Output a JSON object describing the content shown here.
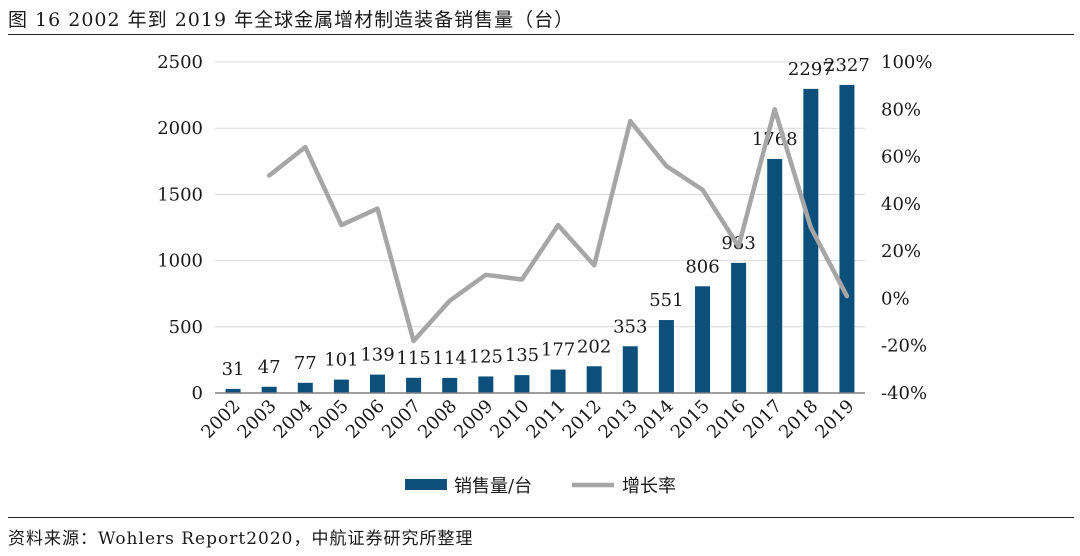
{
  "title": "图 16 2002 年到 2019 年全球金属增材制造装备销售量（台）",
  "source": "资料来源：Wohlers Report2020，中航证券研究所整理",
  "colors": {
    "bar": "#0b4f7a",
    "line": "#a6a6a6",
    "axis": "#7f7f7f",
    "grid": "#d9d9d9"
  },
  "chart_data": {
    "type": "bar",
    "categories": [
      "2002",
      "2003",
      "2004",
      "2005",
      "2006",
      "2007",
      "2008",
      "2009",
      "2010",
      "2011",
      "2012",
      "2013",
      "2014",
      "2015",
      "2016",
      "2017",
      "2018",
      "2019"
    ],
    "series": [
      {
        "name": "销售量/台",
        "type": "bar",
        "axis": "left",
        "values": [
          31,
          47,
          77,
          101,
          139,
          115,
          114,
          125,
          135,
          177,
          202,
          353,
          551,
          806,
          983,
          1768,
          2297,
          2327
        ],
        "labels": [
          "31",
          "47",
          "77",
          "101",
          "139",
          "115",
          "114",
          "125",
          "135",
          "177",
          "202",
          "353",
          "551",
          "806",
          "983",
          "1768",
          "2297",
          "2327"
        ]
      },
      {
        "name": "增长率",
        "type": "line",
        "axis": "right",
        "values": [
          null,
          52,
          64,
          31,
          38,
          -18,
          -1,
          10,
          8,
          31,
          14,
          75,
          56,
          46,
          22,
          80,
          30,
          1
        ]
      }
    ],
    "yleft": {
      "lim": [
        0,
        2500
      ],
      "ticks": [
        0,
        500,
        1000,
        1500,
        2000,
        2500
      ],
      "tick_labels": [
        "0",
        "500",
        "1000",
        "1500",
        "2000",
        "2500"
      ]
    },
    "yright": {
      "lim": [
        -40,
        100
      ],
      "ticks": [
        -40,
        -20,
        0,
        20,
        40,
        60,
        80,
        100
      ],
      "tick_labels": [
        "-40%",
        "-20%",
        "0%",
        "20%",
        "40%",
        "60%",
        "80%",
        "100%"
      ]
    },
    "grid": true,
    "legend": {
      "position": "bottom",
      "entries": [
        "销售量/台",
        "增长率"
      ]
    }
  }
}
